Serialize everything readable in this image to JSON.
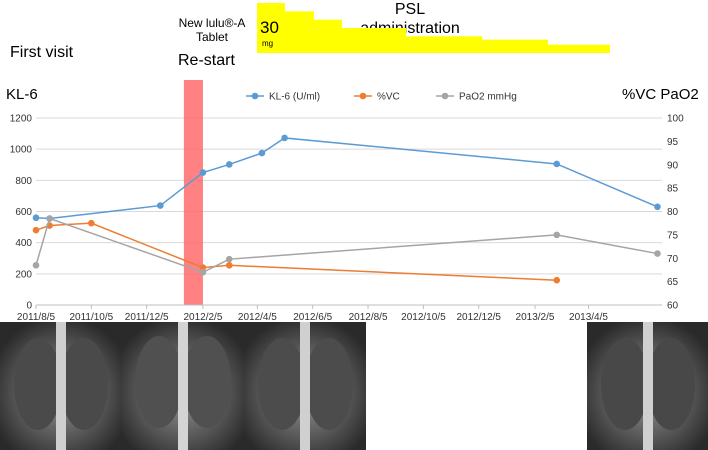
{
  "annotations": {
    "first_visit": "First visit",
    "restart": "Re-start",
    "drug_name": "New lulu®-A",
    "drug_form": "Tablet",
    "dose_value": "30",
    "dose_unit": "mg",
    "psl_line1": "PSL",
    "psl_line2": "administration",
    "left_axis_title": "KL-6",
    "right_axis_title": "%VC PaO2"
  },
  "colors": {
    "kl6": "#5b9bd5",
    "vc": "#ed7d31",
    "pao2": "#a5a5a5",
    "psl": "#ffff00",
    "restart_band": "#ff6b6b"
  },
  "chart_data": {
    "type": "line",
    "x_ticks": [
      "2011/8/5",
      "2011/10/5",
      "2011/12/5",
      "2012/2/5",
      "2012/4/5",
      "2012/6/5",
      "2012/8/5",
      "2012/10/5",
      "2012/12/5",
      "2013/2/5",
      "2013/4/5"
    ],
    "x_range": [
      "2011/8/5",
      "2013/6/25"
    ],
    "y_left": {
      "label": "KL-6",
      "range": [
        0,
        1200
      ],
      "ticks": [
        0,
        200,
        400,
        600,
        800,
        1000,
        1200
      ]
    },
    "y_right": {
      "label": "%VC PaO2",
      "range": [
        60,
        100
      ],
      "ticks": [
        60,
        65,
        70,
        75,
        80,
        85,
        90,
        95,
        100
      ]
    },
    "grid": true,
    "legend_position": "top",
    "restart_band": [
      "2012/1/15",
      "2012/2/5"
    ],
    "series": [
      {
        "name": "KL-6 (U/ml)",
        "axis": "left",
        "color": "#5b9bd5",
        "points": [
          [
            "2011/8/5",
            560
          ],
          [
            "2011/8/20",
            555
          ],
          [
            "2011/12/20",
            638
          ],
          [
            "2012/2/5",
            850
          ],
          [
            "2012/3/5",
            902
          ],
          [
            "2012/4/10",
            975
          ],
          [
            "2012/5/5",
            1072
          ],
          [
            "2013/3/1",
            905
          ],
          [
            "2013/6/20",
            630
          ]
        ]
      },
      {
        "name": "%VC",
        "axis": "right",
        "color": "#ed7d31",
        "points": [
          [
            "2011/8/5",
            76
          ],
          [
            "2011/8/20",
            77
          ],
          [
            "2011/10/5",
            77.5
          ],
          [
            "2012/2/5",
            68
          ],
          [
            "2012/3/5",
            68.5
          ],
          [
            "2013/3/1",
            65.3
          ]
        ]
      },
      {
        "name": "PaO2 mmHg",
        "axis": "right",
        "color": "#a5a5a5",
        "points": [
          [
            "2011/8/5",
            68.5
          ],
          [
            "2011/8/20",
            78.5
          ],
          [
            "2012/2/5",
            67
          ],
          [
            "2012/3/5",
            69.8
          ],
          [
            "2013/3/1",
            75
          ],
          [
            "2013/6/20",
            71
          ]
        ]
      }
    ],
    "psl_dose_bar": {
      "steps": [
        30,
        25,
        20,
        15,
        10,
        8,
        5,
        3
      ]
    }
  }
}
